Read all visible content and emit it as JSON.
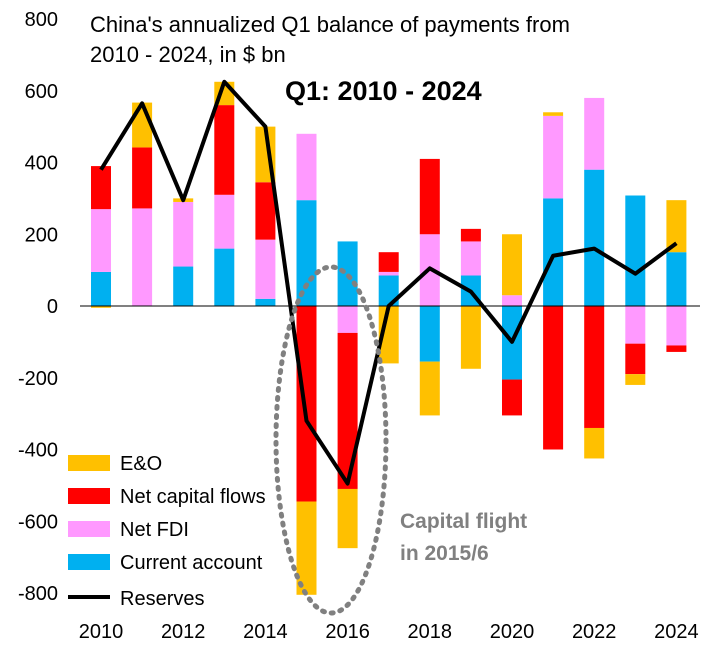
{
  "chart_data": {
    "type": "bar",
    "stacked": true,
    "title": "China's annualized Q1 balance of payments from",
    "title_line2": "2010 - 2024, in $ bn",
    "subtitle": "Q1: 2010 - 2024",
    "ylim": [
      -800,
      800
    ],
    "yticks": [
      800,
      600,
      400,
      200,
      0,
      -200,
      -400,
      -600,
      -800
    ],
    "categories": [
      2010,
      2011,
      2012,
      2013,
      2014,
      2015,
      2016,
      2017,
      2018,
      2019,
      2020,
      2021,
      2022,
      2023,
      2024
    ],
    "xtick_labels": [
      "2010",
      "2012",
      "2014",
      "2016",
      "2018",
      "2020",
      "2022",
      "2024"
    ],
    "series": [
      {
        "name": "Current account",
        "color": "#00B0F0",
        "values": [
          95,
          0,
          110,
          160,
          20,
          295,
          180,
          85,
          -155,
          85,
          -205,
          300,
          380,
          308,
          150
        ]
      },
      {
        "name": "Net FDI",
        "color": "#FF99FF",
        "values": [
          175,
          272,
          180,
          150,
          165,
          185,
          -75,
          10,
          200,
          95,
          30,
          230,
          200,
          -105,
          -110
        ]
      },
      {
        "name": "Net capital flows",
        "color": "#FF0000",
        "values": [
          120,
          170,
          0,
          250,
          160,
          -545,
          -435,
          55,
          210,
          35,
          -100,
          -400,
          -340,
          -85,
          -18
        ]
      },
      {
        "name": "E&O",
        "color": "#FFC000",
        "values": [
          -5,
          125,
          10,
          65,
          155,
          -260,
          -165,
          -160,
          -150,
          -175,
          170,
          10,
          -85,
          -30,
          145
        ]
      }
    ],
    "line": {
      "name": "Reserves",
      "color": "#000000",
      "values": [
        380,
        565,
        295,
        625,
        500,
        -320,
        -495,
        0,
        105,
        40,
        -100,
        140,
        160,
        90,
        175
      ]
    },
    "legend": [
      "E&O",
      "Net capital flows",
      "Net FDI",
      "Current account",
      "Reserves"
    ],
    "annotation": {
      "line1": "Capital flight",
      "line2": "in 2015/6",
      "color": "#808080"
    }
  }
}
